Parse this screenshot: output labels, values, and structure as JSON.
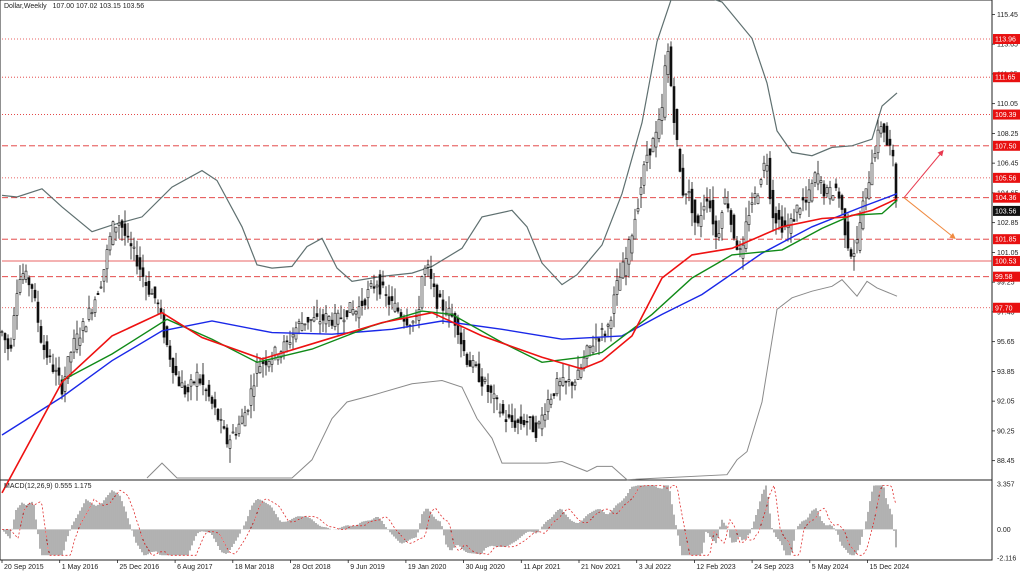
{
  "header": {
    "symbol_label": "Dollar,Weekly",
    "ohlc": "107.00 107.02 103.15 103.56"
  },
  "chart_data": {
    "type": "candlestick",
    "price_axis": {
      "ylim": [
        87.4,
        116.2
      ],
      "ticks": [
        "115.45",
        "113.65",
        "111.85",
        "110.05",
        "108.25",
        "106.45",
        "104.65",
        "102.85",
        "101.05",
        "99.25",
        "97.45",
        "95.65",
        "93.85",
        "92.05",
        "90.25",
        "88.45"
      ]
    },
    "current_price": "103.56",
    "levels": [
      {
        "label": "113.96",
        "value": 113.96,
        "style": "dotted"
      },
      {
        "label": "111.65",
        "value": 111.65,
        "style": "dotted"
      },
      {
        "label": "109.39",
        "value": 109.39,
        "style": "dotted"
      },
      {
        "label": "107.50",
        "value": 107.5,
        "style": "dashed"
      },
      {
        "label": "105.56",
        "value": 105.56,
        "style": "dotted"
      },
      {
        "label": "104.36",
        "value": 104.36,
        "style": "dashed"
      },
      {
        "label": "101.85",
        "value": 101.85,
        "style": "dashed"
      },
      {
        "label": "100.53",
        "value": 100.53,
        "style": "solid"
      },
      {
        "label": "99.58",
        "value": 99.58,
        "style": "dashed"
      },
      {
        "label": "97.70",
        "value": 97.7,
        "style": "dotted"
      }
    ],
    "x_labels": [
      "20 Sep 2015",
      "1 May 2016",
      "25 Dec 2016",
      "6 Aug 2017",
      "18 Mar 2018",
      "28 Oct 2018",
      "9 Jun 2019",
      "19 Jan 2020",
      "30 Aug 2020",
      "11 Apr 2021",
      "21 Nov 2021",
      "3 Jul 2022",
      "12 Feb 2023",
      "24 Sep 2023",
      "5 May 2024",
      "15 Dec 2024"
    ],
    "x_range": [
      0,
      490
    ],
    "price_path": [
      [
        0,
        96.2
      ],
      [
        8,
        95.0
      ],
      [
        14,
        98.8
      ],
      [
        20,
        99.8
      ],
      [
        30,
        99.0
      ],
      [
        40,
        95.5
      ],
      [
        50,
        94.2
      ],
      [
        60,
        92.9
      ],
      [
        70,
        95.3
      ],
      [
        80,
        96.4
      ],
      [
        90,
        97.8
      ],
      [
        100,
        99.5
      ],
      [
        110,
        102.5
      ],
      [
        118,
        103.0
      ],
      [
        125,
        101.7
      ],
      [
        135,
        100.6
      ],
      [
        145,
        99.0
      ],
      [
        155,
        98.1
      ],
      [
        165,
        95.4
      ],
      [
        175,
        93.4
      ],
      [
        185,
        92.5
      ],
      [
        195,
        93.6
      ],
      [
        205,
        92.5
      ],
      [
        215,
        91.2
      ],
      [
        225,
        89.6
      ],
      [
        235,
        90.4
      ],
      [
        245,
        91.6
      ],
      [
        255,
        94.2
      ],
      [
        265,
        94.6
      ],
      [
        275,
        95.0
      ],
      [
        285,
        95.5
      ],
      [
        295,
        96.6
      ],
      [
        305,
        97.0
      ],
      [
        315,
        96.9
      ],
      [
        325,
        97.1
      ],
      [
        335,
        96.9
      ],
      [
        345,
        97.6
      ],
      [
        355,
        97.5
      ],
      [
        365,
        98.5
      ],
      [
        375,
        99.3
      ],
      [
        385,
        98.2
      ],
      [
        395,
        97.6
      ],
      [
        405,
        97.0
      ],
      [
        415,
        96.8
      ],
      [
        420,
        99.6
      ],
      [
        425,
        100.2
      ],
      [
        430,
        99.0
      ],
      [
        435,
        98.1
      ],
      [
        445,
        97.5
      ],
      [
        455,
        96.8
      ],
      [
        460,
        95.4
      ],
      [
        465,
        94.6
      ],
      [
        475,
        93.8
      ],
      [
        485,
        92.8
      ],
      [
        495,
        91.8
      ],
      [
        505,
        90.9
      ],
      [
        515,
        90.7
      ],
      [
        525,
        90.9
      ],
      [
        535,
        90.2
      ],
      [
        545,
        92.0
      ],
      [
        555,
        93.0
      ],
      [
        565,
        93.1
      ],
      [
        575,
        93.4
      ],
      [
        585,
        95.0
      ],
      [
        595,
        96.0
      ],
      [
        605,
        96.3
      ],
      [
        615,
        99.0
      ],
      [
        625,
        100.8
      ],
      [
        635,
        103.8
      ],
      [
        645,
        107.0
      ],
      [
        655,
        108.2
      ],
      [
        660,
        109.6
      ],
      [
        665,
        113.8
      ],
      [
        670,
        110.5
      ],
      [
        675,
        107.6
      ],
      [
        680,
        104.7
      ],
      [
        685,
        104.9
      ],
      [
        690,
        103.8
      ],
      [
        695,
        102.3
      ],
      [
        700,
        103.8
      ],
      [
        705,
        104.5
      ],
      [
        710,
        103.4
      ],
      [
        715,
        101.6
      ],
      [
        720,
        103.9
      ],
      [
        725,
        104.4
      ],
      [
        730,
        102.5
      ],
      [
        735,
        101.5
      ],
      [
        740,
        100.6
      ],
      [
        745,
        103.1
      ],
      [
        750,
        104.2
      ],
      [
        755,
        104.5
      ],
      [
        760,
        106.1
      ],
      [
        765,
        106.6
      ],
      [
        770,
        103.5
      ],
      [
        775,
        103.1
      ],
      [
        780,
        102.7
      ],
      [
        785,
        102.5
      ],
      [
        790,
        102.9
      ],
      [
        795,
        103.7
      ],
      [
        800,
        104.1
      ],
      [
        805,
        104.0
      ],
      [
        810,
        105.1
      ],
      [
        815,
        105.9
      ],
      [
        820,
        104.9
      ],
      [
        825,
        104.6
      ],
      [
        830,
        104.7
      ],
      [
        835,
        105.0
      ],
      [
        840,
        103.5
      ],
      [
        845,
        101.8
      ],
      [
        850,
        100.9
      ],
      [
        855,
        101.6
      ],
      [
        860,
        103.7
      ],
      [
        865,
        104.8
      ],
      [
        870,
        106.7
      ],
      [
        875,
        107.8
      ],
      [
        880,
        109.1
      ],
      [
        885,
        107.6
      ],
      [
        890,
        107.2
      ],
      [
        895,
        103.56
      ]
    ],
    "sma_red": [
      [
        0,
        86.5
      ],
      [
        60,
        93.2
      ],
      [
        110,
        96.0
      ],
      [
        160,
        97.4
      ],
      [
        200,
        95.9
      ],
      [
        260,
        94.6
      ],
      [
        320,
        95.7
      ],
      [
        380,
        96.8
      ],
      [
        430,
        97.4
      ],
      [
        480,
        96.0
      ],
      [
        540,
        94.7
      ],
      [
        580,
        94.0
      ],
      [
        600,
        94.5
      ],
      [
        630,
        96.0
      ],
      [
        660,
        99.5
      ],
      [
        690,
        100.9
      ],
      [
        730,
        101.3
      ],
      [
        780,
        102.6
      ],
      [
        820,
        103.1
      ],
      [
        845,
        103.2
      ],
      [
        870,
        103.6
      ],
      [
        895,
        104.3
      ]
    ],
    "sma_blue": [
      [
        0,
        90.0
      ],
      [
        60,
        92.3
      ],
      [
        110,
        94.5
      ],
      [
        160,
        96.3
      ],
      [
        210,
        96.9
      ],
      [
        270,
        96.2
      ],
      [
        330,
        96.1
      ],
      [
        390,
        96.4
      ],
      [
        440,
        96.9
      ],
      [
        500,
        96.4
      ],
      [
        560,
        95.8
      ],
      [
        620,
        96.0
      ],
      [
        660,
        97.3
      ],
      [
        700,
        98.5
      ],
      [
        760,
        101.0
      ],
      [
        810,
        102.6
      ],
      [
        860,
        103.8
      ],
      [
        895,
        104.6
      ]
    ],
    "sma_green": [
      [
        60,
        93.3
      ],
      [
        110,
        94.9
      ],
      [
        165,
        97.0
      ],
      [
        210,
        95.8
      ],
      [
        255,
        94.4
      ],
      [
        310,
        95.2
      ],
      [
        370,
        96.6
      ],
      [
        420,
        97.5
      ],
      [
        450,
        97.3
      ],
      [
        500,
        95.6
      ],
      [
        540,
        94.4
      ],
      [
        580,
        94.7
      ],
      [
        600,
        95.0
      ],
      [
        650,
        97.3
      ],
      [
        690,
        99.5
      ],
      [
        730,
        100.9
      ],
      [
        780,
        101.2
      ],
      [
        820,
        102.5
      ],
      [
        850,
        103.3
      ],
      [
        880,
        103.4
      ],
      [
        895,
        104.2
      ]
    ],
    "band_upper": [
      [
        0,
        104.5
      ],
      [
        15,
        104.4
      ],
      [
        40,
        104.9
      ],
      [
        60,
        103.8
      ],
      [
        90,
        102.3
      ],
      [
        110,
        102.7
      ],
      [
        140,
        103.2
      ],
      [
        170,
        105.0
      ],
      [
        200,
        106.0
      ],
      [
        215,
        105.4
      ],
      [
        240,
        102.6
      ],
      [
        255,
        100.3
      ],
      [
        270,
        100.1
      ],
      [
        290,
        100.2
      ],
      [
        305,
        101.4
      ],
      [
        320,
        101.9
      ],
      [
        335,
        100.1
      ],
      [
        350,
        99.3
      ],
      [
        380,
        99.6
      ],
      [
        410,
        99.8
      ],
      [
        430,
        100.2
      ],
      [
        460,
        101.3
      ],
      [
        480,
        103.2
      ],
      [
        510,
        103.6
      ],
      [
        525,
        102.6
      ],
      [
        540,
        100.4
      ],
      [
        560,
        99.1
      ],
      [
        575,
        99.7
      ],
      [
        600,
        101.5
      ],
      [
        620,
        104.6
      ],
      [
        640,
        108.9
      ],
      [
        655,
        113.8
      ],
      [
        670,
        116.5
      ],
      [
        690,
        116.8
      ],
      [
        720,
        116.2
      ],
      [
        750,
        114.0
      ],
      [
        765,
        111.3
      ],
      [
        775,
        108.4
      ],
      [
        790,
        107.1
      ],
      [
        810,
        106.9
      ],
      [
        830,
        107.4
      ],
      [
        850,
        107.5
      ],
      [
        870,
        107.9
      ],
      [
        880,
        109.9
      ],
      [
        895,
        110.7
      ]
    ],
    "band_lower": [
      [
        145,
        87.4
      ],
      [
        160,
        88.3
      ],
      [
        175,
        87.4
      ],
      [
        290,
        87.4
      ],
      [
        310,
        88.5
      ],
      [
        330,
        91.0
      ],
      [
        345,
        92.0
      ],
      [
        370,
        92.4
      ],
      [
        410,
        93.1
      ],
      [
        440,
        93.3
      ],
      [
        460,
        92.9
      ],
      [
        475,
        91.0
      ],
      [
        490,
        89.8
      ],
      [
        500,
        88.3
      ],
      [
        545,
        88.3
      ],
      [
        560,
        88.4
      ],
      [
        585,
        87.8
      ],
      [
        595,
        88.1
      ],
      [
        610,
        88.1
      ],
      [
        625,
        87.3
      ],
      [
        725,
        87.6
      ],
      [
        735,
        88.5
      ],
      [
        745,
        89.0
      ],
      [
        760,
        92.0
      ],
      [
        775,
        97.6
      ],
      [
        790,
        98.3
      ],
      [
        810,
        98.7
      ],
      [
        830,
        99.0
      ],
      [
        840,
        99.4
      ],
      [
        855,
        98.4
      ],
      [
        865,
        99.3
      ],
      [
        875,
        98.9
      ],
      [
        895,
        98.4
      ]
    ],
    "projection": [
      {
        "direction": "up",
        "to": 107.2
      },
      {
        "direction": "down",
        "to": 101.9
      }
    ],
    "macd": {
      "label": "MACD(12,26,9) 0.555 1.175",
      "ylim": [
        -2.116,
        3.357
      ],
      "ticks": [
        "3.357",
        "0.00",
        "-2.116"
      ]
    }
  }
}
